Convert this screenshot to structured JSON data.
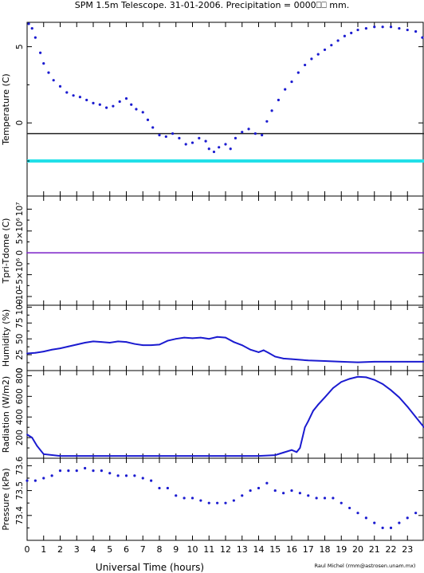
{
  "title": "SPM 1.5m Telescope. 31-01-2006. Precipitation = 0000⎕⎕ mm.",
  "credit": "Raul Michel (rmm@astrosen.unam.mx)",
  "colors": {
    "data": "#1b1bd0",
    "threshold_black": "#222222",
    "threshold_cyan": "#22e0e8",
    "tdome_line": "#7a1fc8",
    "axis": "#000000"
  },
  "chart_data": [
    {
      "type": "scatter",
      "id": "temperature",
      "ylabel": "Temperature (C)",
      "xlim": [
        0,
        24
      ],
      "ylim": [
        -4.8,
        6.6
      ],
      "yticks": [
        0,
        5
      ],
      "ytick_labels": [
        "0",
        "5"
      ],
      "hlines": [
        {
          "y": -0.7,
          "color": "#222222"
        },
        {
          "y": -2.5,
          "color": "#22e0e8"
        }
      ],
      "x": [
        0.1,
        0.3,
        0.5,
        0.8,
        1.0,
        1.3,
        1.6,
        2.0,
        2.4,
        2.8,
        3.2,
        3.6,
        4.0,
        4.4,
        4.8,
        5.2,
        5.6,
        6.0,
        6.3,
        6.6,
        7.0,
        7.3,
        7.6,
        8.0,
        8.4,
        8.8,
        9.2,
        9.6,
        10.0,
        10.4,
        10.8,
        11.0,
        11.3,
        11.6,
        12.0,
        12.3,
        12.6,
        13.0,
        13.4,
        13.8,
        14.2,
        14.5,
        14.8,
        15.2,
        15.6,
        16.0,
        16.4,
        16.8,
        17.2,
        17.6,
        18.0,
        18.4,
        18.8,
        19.2,
        19.6,
        20.0,
        20.5,
        21.0,
        21.5,
        22.0,
        22.5,
        23.0,
        23.5,
        23.9
      ],
      "y": [
        6.5,
        6.2,
        5.6,
        4.6,
        3.9,
        3.3,
        2.8,
        2.4,
        2.0,
        1.8,
        1.7,
        1.5,
        1.3,
        1.2,
        1.0,
        1.1,
        1.4,
        1.6,
        1.2,
        0.9,
        0.7,
        0.2,
        -0.3,
        -0.8,
        -0.9,
        -0.7,
        -1.0,
        -1.4,
        -1.3,
        -1.0,
        -1.2,
        -1.7,
        -1.9,
        -1.6,
        -1.4,
        -1.7,
        -1.0,
        -0.6,
        -0.4,
        -0.7,
        -0.8,
        0.1,
        0.8,
        1.5,
        2.2,
        2.7,
        3.3,
        3.8,
        4.2,
        4.5,
        4.8,
        5.1,
        5.4,
        5.7,
        5.9,
        6.1,
        6.2,
        6.3,
        6.3,
        6.3,
        6.2,
        6.1,
        6.0,
        5.6
      ]
    },
    {
      "type": "line",
      "id": "tdome",
      "ylabel": "Tpri-Tdome (C)",
      "xlim": [
        0,
        24
      ],
      "ylim": [
        -12000000,
        13000000
      ],
      "yticks": [
        -10000000,
        -5000000,
        0,
        5000000,
        10000000
      ],
      "ytick_labels": [
        "−10⁷",
        "−5×10⁶",
        "0",
        "5×10⁶",
        "10⁷"
      ],
      "x": [
        0,
        24
      ],
      "y": [
        0,
        0
      ]
    },
    {
      "type": "line",
      "id": "humidity",
      "ylabel": "Humidity (%)",
      "xlim": [
        0,
        24
      ],
      "ylim": [
        0,
        103
      ],
      "yticks": [
        0,
        25,
        50,
        75,
        100
      ],
      "ytick_labels": [
        "0",
        "25",
        "50",
        "75",
        "100"
      ],
      "x": [
        0,
        0.5,
        1.0,
        1.5,
        2.0,
        2.5,
        3.0,
        3.5,
        4.0,
        4.5,
        5.0,
        5.5,
        6.0,
        6.5,
        7.0,
        7.5,
        8.0,
        8.5,
        9.0,
        9.5,
        10.0,
        10.5,
        11.0,
        11.5,
        12.0,
        12.5,
        13.0,
        13.5,
        14.0,
        14.3,
        14.6,
        15.0,
        15.5,
        16.0,
        17.0,
        18.0,
        19.0,
        20.0,
        21.0,
        22.0,
        23.0,
        24.0
      ],
      "y": [
        27,
        28,
        30,
        33,
        35,
        38,
        41,
        44,
        46,
        45,
        44,
        46,
        45,
        42,
        40,
        40,
        41,
        47,
        50,
        52,
        51,
        52,
        50,
        53,
        52,
        45,
        40,
        33,
        29,
        32,
        28,
        22,
        19,
        18,
        16,
        15,
        14,
        13,
        14,
        14,
        14,
        14
      ]
    },
    {
      "type": "line",
      "id": "radiation",
      "ylabel": "Radiation (W/m2)",
      "xlim": [
        0,
        24
      ],
      "ylim": [
        0,
        850
      ],
      "yticks": [
        200,
        400,
        600,
        800
      ],
      "ytick_labels": [
        "200",
        "400",
        "600",
        "800"
      ],
      "x": [
        0,
        0.3,
        0.6,
        1.0,
        2.0,
        4.0,
        6.0,
        8.0,
        10.0,
        12.0,
        14.0,
        15.0,
        15.5,
        16.0,
        16.3,
        16.5,
        16.8,
        17.0,
        17.3,
        17.6,
        18.0,
        18.5,
        19.0,
        19.5,
        20.0,
        20.5,
        21.0,
        21.5,
        22.0,
        22.5,
        23.0,
        23.5,
        24.0
      ],
      "y": [
        230,
        200,
        120,
        40,
        22,
        22,
        22,
        22,
        22,
        22,
        22,
        30,
        55,
        80,
        60,
        100,
        300,
        360,
        460,
        520,
        590,
        680,
        740,
        770,
        790,
        785,
        760,
        720,
        660,
        590,
        500,
        400,
        300
      ]
    },
    {
      "type": "scatter",
      "id": "pressure",
      "ylabel": "Pressure (kPa)",
      "xlim": [
        0,
        24
      ],
      "ylim": [
        73.3,
        73.63
      ],
      "yticks": [
        73.4,
        73.5,
        73.6
      ],
      "ytick_labels": [
        "73.4",
        "73.5",
        "73.6"
      ],
      "x": [
        0.0,
        0.5,
        1.0,
        1.5,
        2.0,
        2.5,
        3.0,
        3.5,
        4.0,
        4.5,
        5.0,
        5.5,
        6.0,
        6.5,
        7.0,
        7.5,
        8.0,
        8.5,
        9.0,
        9.5,
        10.0,
        10.5,
        11.0,
        11.5,
        12.0,
        12.5,
        13.0,
        13.5,
        14.0,
        14.5,
        15.0,
        15.5,
        16.0,
        16.5,
        17.0,
        17.5,
        18.0,
        18.5,
        19.0,
        19.5,
        20.0,
        20.5,
        21.0,
        21.5,
        22.0,
        22.5,
        23.0,
        23.5
      ],
      "y": [
        73.54,
        73.54,
        73.55,
        73.56,
        73.58,
        73.58,
        73.58,
        73.59,
        73.58,
        73.58,
        73.57,
        73.56,
        73.56,
        73.56,
        73.55,
        73.54,
        73.51,
        73.51,
        73.48,
        73.47,
        73.47,
        73.46,
        73.45,
        73.45,
        73.45,
        73.46,
        73.48,
        73.5,
        73.51,
        73.53,
        73.5,
        73.49,
        73.5,
        73.49,
        73.48,
        73.47,
        73.47,
        73.47,
        73.45,
        73.43,
        73.41,
        73.39,
        73.37,
        73.35,
        73.35,
        73.37,
        73.39,
        73.41
      ]
    }
  ],
  "x_axis": {
    "label": "Universal Time (hours)",
    "ticks": [
      0,
      1,
      2,
      3,
      4,
      5,
      6,
      7,
      8,
      9,
      10,
      11,
      12,
      13,
      14,
      15,
      16,
      17,
      18,
      19,
      20,
      21,
      22,
      23
    ],
    "tick_labels": [
      "0",
      "1",
      "2",
      "3",
      "4",
      "5",
      "6",
      "7",
      "8",
      "9",
      "10",
      "11",
      "12",
      "13",
      "14",
      "15",
      "16",
      "17",
      "18",
      "19",
      "20",
      "21",
      "22",
      "23"
    ],
    "range": [
      0,
      24
    ]
  }
}
